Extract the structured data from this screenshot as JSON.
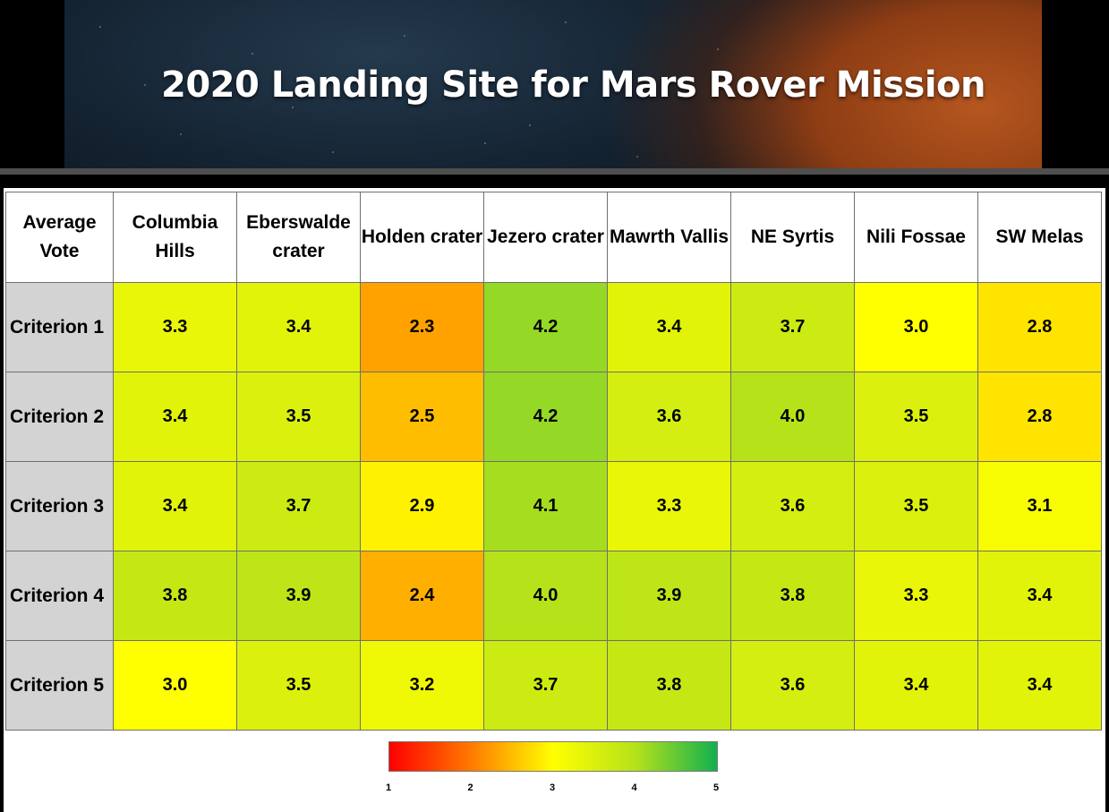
{
  "banner": {
    "title": "2020 Landing Site for Mars Rover Mission"
  },
  "chart_data": {
    "type": "heatmap",
    "title": "2020 Landing Site for Mars Rover Mission",
    "corner_label": "Average Vote",
    "columns": [
      "Columbia Hills",
      "Eberswalde crater",
      "Holden crater",
      "Jezero crater",
      "Mawrth Vallis",
      "NE Syrtis",
      "Nili Fossae",
      "SW Melas"
    ],
    "rows": [
      {
        "label": "Criterion 1",
        "values": [
          "3.3",
          "3.4",
          "2.3",
          "4.2",
          "3.4",
          "3.7",
          "3.0",
          "2.8"
        ]
      },
      {
        "label": "Criterion 2",
        "values": [
          "3.4",
          "3.5",
          "2.5",
          "4.2",
          "3.6",
          "4.0",
          "3.5",
          "2.8"
        ]
      },
      {
        "label": "Criterion 3",
        "values": [
          "3.4",
          "3.7",
          "2.9",
          "4.1",
          "3.3",
          "3.6",
          "3.5",
          "3.1"
        ]
      },
      {
        "label": "Criterion 4",
        "values": [
          "3.8",
          "3.9",
          "2.4",
          "4.0",
          "3.9",
          "3.8",
          "3.3",
          "3.4"
        ]
      },
      {
        "label": "Criterion 5",
        "values": [
          "3.0",
          "3.5",
          "3.2",
          "3.7",
          "3.8",
          "3.6",
          "3.4",
          "3.4"
        ]
      }
    ],
    "color_scale": {
      "min": 1,
      "max": 5,
      "ticks": [
        "1",
        "2",
        "3",
        "4",
        "5"
      ],
      "colors": [
        "#ff0000",
        "#ff7a00",
        "#ffff00",
        "#b6e21a",
        "#12b050"
      ]
    }
  }
}
